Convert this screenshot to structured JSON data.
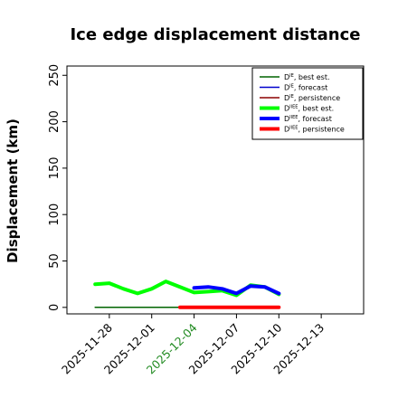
{
  "chart_data": {
    "type": "line",
    "title": "Ice edge displacement distance",
    "xlabel": "",
    "ylabel": "Displacement (km)",
    "ylim": [
      -7,
      260
    ],
    "yticks": [
      0,
      50,
      100,
      150,
      200,
      250
    ],
    "xlim": [
      "2025-11-25",
      "2025-12-16"
    ],
    "xticks": [
      {
        "date": "2025-11-28",
        "label": "2025-11-28",
        "color": "#000000"
      },
      {
        "date": "2025-12-01",
        "label": "2025-12-01",
        "color": "#000000"
      },
      {
        "date": "2025-12-04",
        "label": "2025-12-04",
        "color": "#228B22"
      },
      {
        "date": "2025-12-07",
        "label": "2025-12-07",
        "color": "#000000"
      },
      {
        "date": "2025-12-10",
        "label": "2025-12-10",
        "color": "#000000"
      },
      {
        "date": "2025-12-13",
        "label": "2025-12-13",
        "color": "#000000"
      }
    ],
    "legend_position": "top-right",
    "grid": false,
    "series": [
      {
        "name": "D^IE, best est.",
        "label_base": "D",
        "label_sup": "IE",
        "label_suffix": ", best est.",
        "color": "#006400",
        "width": 1.5,
        "x": [
          "2025-11-27",
          "2025-11-28",
          "2025-11-29",
          "2025-11-30",
          "2025-12-01",
          "2025-12-02",
          "2025-12-03",
          "2025-12-04"
        ],
        "y": [
          0,
          0,
          0,
          0,
          0,
          0,
          0,
          0
        ]
      },
      {
        "name": "D^IE, forecast",
        "label_base": "D",
        "label_sup": "IE",
        "label_suffix": ", forecast",
        "color": "#0000cd",
        "width": 1.5,
        "x": [],
        "y": []
      },
      {
        "name": "D^IE, persistence",
        "label_base": "D",
        "label_sup": "IE",
        "label_suffix": ", persistence",
        "color": "#8b0000",
        "width": 1.5,
        "x": [],
        "y": []
      },
      {
        "name": "D^IIEE, best est.",
        "label_base": "D",
        "label_sup": "IIEE",
        "label_suffix": ", best est.",
        "color": "#00ff00",
        "width": 4,
        "x": [
          "2025-11-27",
          "2025-11-28",
          "2025-11-29",
          "2025-11-30",
          "2025-12-01",
          "2025-12-02",
          "2025-12-03",
          "2025-12-04",
          "2025-12-05",
          "2025-12-06",
          "2025-12-07",
          "2025-12-08",
          "2025-12-09",
          "2025-12-10"
        ],
        "y": [
          25,
          26,
          20,
          15,
          20,
          28,
          22,
          16,
          17,
          18,
          13,
          24,
          22,
          14
        ]
      },
      {
        "name": "D^IIEE, forecast",
        "label_base": "D",
        "label_sup": "IIEE",
        "label_suffix": ", forecast",
        "color": "#0000ff",
        "width": 4,
        "x": [
          "2025-12-04",
          "2025-12-05",
          "2025-12-06",
          "2025-12-07",
          "2025-12-08",
          "2025-12-09",
          "2025-12-10"
        ],
        "y": [
          21,
          22,
          20,
          15,
          23,
          22,
          15
        ]
      },
      {
        "name": "D^IIEE, persistence",
        "label_base": "D",
        "label_sup": "IIEE",
        "label_suffix": ", persistence",
        "color": "#ff0000",
        "width": 4,
        "x": [
          "2025-12-03",
          "2025-12-04",
          "2025-12-05",
          "2025-12-06",
          "2025-12-07",
          "2025-12-08",
          "2025-12-09",
          "2025-12-10"
        ],
        "y": [
          0,
          0,
          0,
          0,
          0,
          0,
          0,
          0
        ]
      }
    ]
  }
}
